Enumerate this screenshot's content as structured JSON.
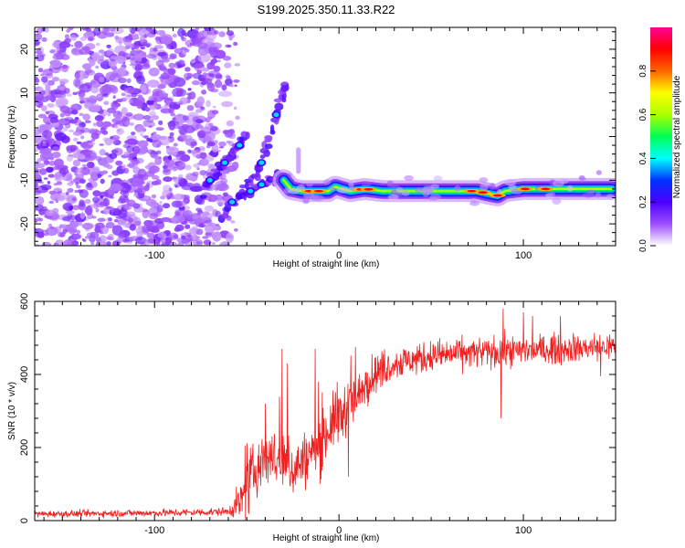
{
  "title": "S199.2025.350.11.33.R22",
  "chart_data": [
    {
      "type": "heatmap",
      "name": "spectrogram",
      "title": "S199.2025.350.11.33.R22",
      "xlabel": "Height of straight line (km)",
      "ylabel": "Frequency (Hz)",
      "xlim": [
        -165,
        150
      ],
      "ylim": [
        -25,
        25
      ],
      "x_ticks": [
        -100,
        0,
        100
      ],
      "y_ticks": [
        20,
        10,
        0,
        -10,
        -20
      ],
      "colorbar": {
        "label": "Normalized spectral amplitude",
        "range": [
          0,
          1
        ],
        "ticks": [
          "0.0",
          "0.2",
          "0.4",
          "0.6",
          "0.8"
        ],
        "tick_values": [
          0.0,
          0.2,
          0.4,
          0.6,
          0.8
        ],
        "colors": [
          "#ffffff",
          "#9d4dff",
          "#4b00ff",
          "#0033ff",
          "#00ffff",
          "#00ff55",
          "#aaff00",
          "#ffff00",
          "#ff6600",
          "#ff0000",
          "#ff0099"
        ]
      },
      "noise_region": {
        "x_range": [
          -165,
          -65
        ],
        "y_range": [
          -25,
          25
        ]
      },
      "branch_tracks": [
        {
          "points": [
            [
              -74,
              -13
            ],
            [
              -70,
              -10
            ],
            [
              -66,
              -8
            ],
            [
              -62,
              -6
            ],
            [
              -58,
              -3.5
            ],
            [
              -54,
              -2
            ],
            [
              -50,
              0.5
            ]
          ],
          "amp": 0.35
        },
        {
          "points": [
            [
              -64,
              -19
            ],
            [
              -58,
              -15
            ],
            [
              -52,
              -12
            ],
            [
              -46,
              -9
            ],
            [
              -42,
              -6
            ],
            [
              -38,
              -1
            ],
            [
              -34,
              5
            ],
            [
              -31,
              9
            ],
            [
              -29,
              12
            ]
          ],
          "amp": 0.3
        },
        {
          "points": [
            [
              -54,
              -14
            ],
            [
              -48,
              -12.5
            ],
            [
              -42,
              -11
            ],
            [
              -36,
              -10
            ],
            [
              -32,
              -9
            ],
            [
              -28,
              -9.5
            ]
          ],
          "amp": 0.3
        }
      ],
      "main_track": {
        "points": [
          [
            -30,
            -10
          ],
          [
            -26,
            -12
          ],
          [
            -20,
            -12.5
          ],
          [
            -12,
            -12.5
          ],
          [
            -6,
            -12.5
          ],
          [
            -2,
            -11.5
          ],
          [
            2,
            -12
          ],
          [
            6,
            -12.5
          ],
          [
            14,
            -12
          ],
          [
            24,
            -12.5
          ],
          [
            40,
            -12.5
          ],
          [
            55,
            -12.5
          ],
          [
            65,
            -12.5
          ],
          [
            75,
            -12.5
          ],
          [
            80,
            -13
          ],
          [
            86,
            -13.5
          ],
          [
            90,
            -12.5
          ],
          [
            100,
            -12
          ],
          [
            112,
            -12
          ],
          [
            125,
            -12
          ],
          [
            138,
            -12
          ],
          [
            148,
            -12
          ]
        ],
        "hotspots": [
          -16,
          -11,
          12,
          16,
          72,
          78,
          86,
          101,
          112
        ]
      }
    },
    {
      "type": "line",
      "name": "snr",
      "xlabel": "Height of straight line (km)",
      "ylabel": "SNR (10 * v/v)",
      "xlim": [
        -165,
        150
      ],
      "ylim": [
        0,
        600
      ],
      "x_ticks": [
        -100,
        0,
        100
      ],
      "y_ticks": [
        0,
        200,
        400,
        600
      ],
      "color": "#f02020",
      "envelope": {
        "x": [
          -165,
          -120,
          -80,
          -60,
          -52,
          -45,
          -40,
          -35,
          -30,
          -25,
          -20,
          -15,
          -10,
          -5,
          0,
          5,
          10,
          15,
          20,
          25,
          30,
          40,
          50,
          60,
          80,
          100,
          120,
          140,
          150
        ],
        "y": [
          18,
          20,
          22,
          25,
          60,
          140,
          180,
          170,
          150,
          140,
          160,
          180,
          200,
          260,
          280,
          320,
          330,
          380,
          400,
          420,
          430,
          440,
          450,
          455,
          460,
          465,
          470,
          475,
          475
        ]
      },
      "noise": {
        "x": [
          -165,
          -60,
          -50,
          0,
          30,
          150
        ],
        "y": [
          8,
          10,
          70,
          70,
          40,
          35
        ]
      },
      "spikes": [
        [
          -48,
          200
        ],
        [
          -40,
          320
        ],
        [
          -31,
          470
        ],
        [
          -28,
          430
        ],
        [
          -13,
          470
        ],
        [
          -11,
          380
        ],
        [
          -1,
          380
        ],
        [
          9,
          475
        ],
        [
          5,
          120
        ],
        [
          89,
          580
        ],
        [
          88,
          280
        ],
        [
          100,
          570
        ],
        [
          105,
          560
        ],
        [
          120,
          560
        ],
        [
          142,
          395
        ]
      ]
    }
  ]
}
